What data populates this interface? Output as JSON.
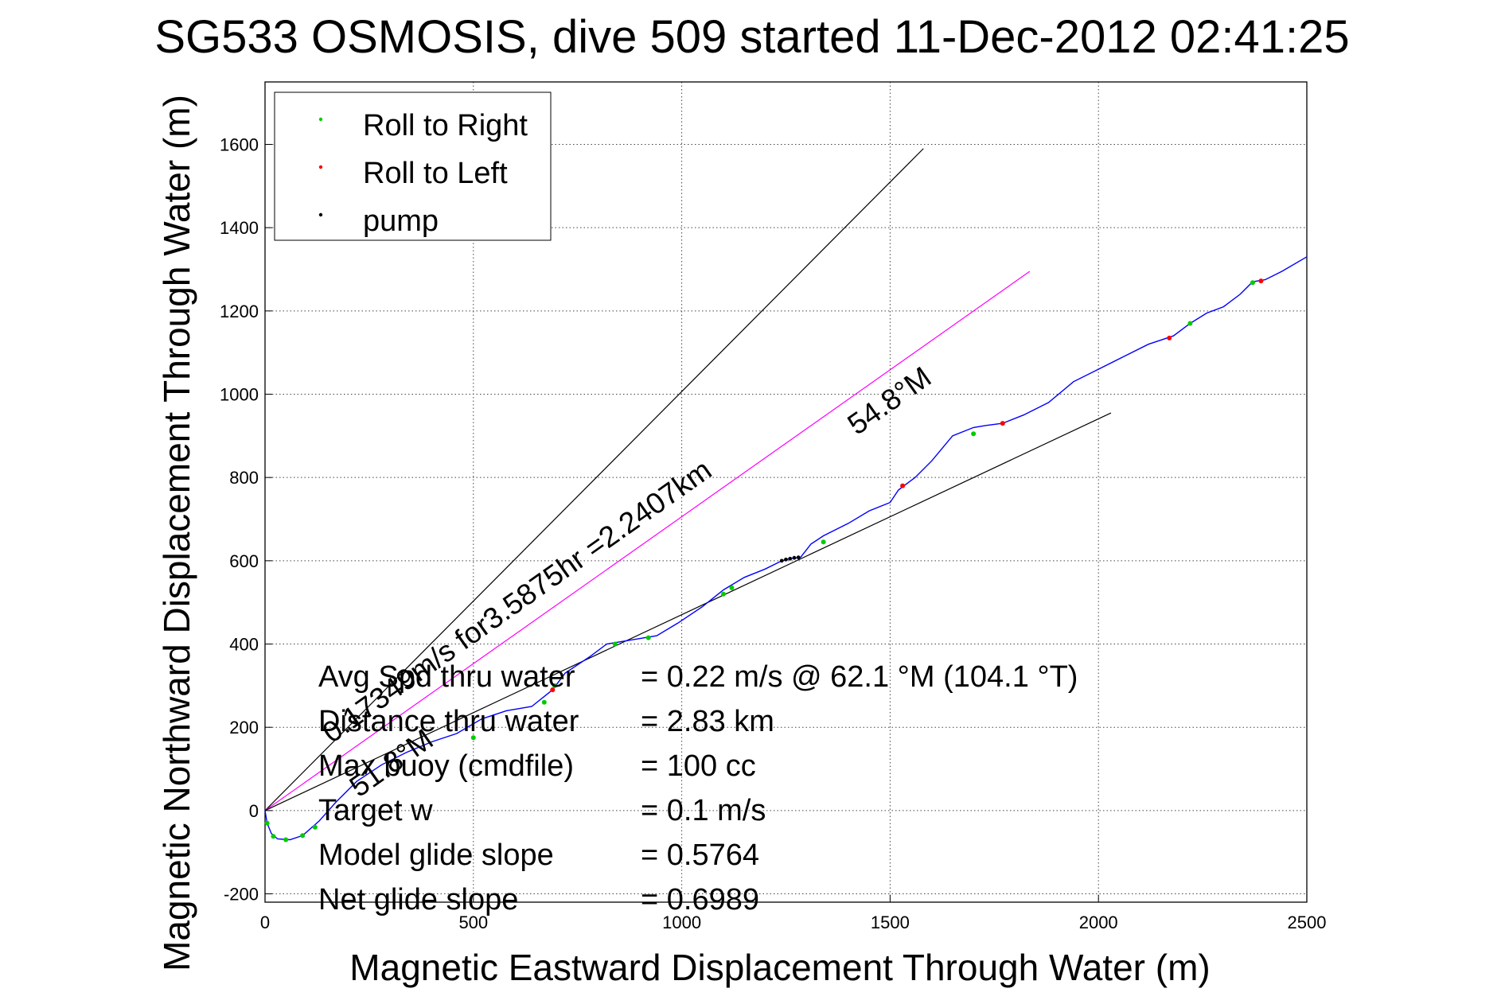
{
  "chart_data": {
    "type": "line",
    "title": "SG533 OSMOSIS, dive 509 started 11-Dec-2012 02:41:25",
    "xlabel": "Magnetic Eastward Displacement Through Water (m)",
    "ylabel": "Magnetic Northward Displacement Through Water (m)",
    "xlim": [
      0,
      2500
    ],
    "ylim": [
      -220,
      1750
    ],
    "xticks": [
      0,
      500,
      1000,
      1500,
      2000,
      2500
    ],
    "xtick_labels": [
      "0",
      "500",
      "1000",
      "1500",
      "2000",
      "2500"
    ],
    "yticks": [
      -200,
      0,
      200,
      400,
      600,
      800,
      1000,
      1200,
      1400,
      1600
    ],
    "ytick_labels": [
      "-200",
      "0",
      "200",
      "400",
      "600",
      "800",
      "1000",
      "1200",
      "1400",
      "1600"
    ],
    "grid": true,
    "legend_position": "top-left",
    "legend": [
      {
        "label": "Roll to Right",
        "color": "#00cc00"
      },
      {
        "label": "Roll to Left",
        "color": "#ff0000"
      },
      {
        "label": "pump",
        "color": "#000000"
      }
    ],
    "track": {
      "color": "#0000ff",
      "x": [
        0,
        5,
        15,
        30,
        60,
        90,
        130,
        170,
        220,
        280,
        340,
        400,
        460,
        520,
        580,
        640,
        690,
        720,
        780,
        820,
        880,
        940,
        990,
        1050,
        1100,
        1150,
        1200,
        1240,
        1260,
        1285,
        1310,
        1340,
        1400,
        1450,
        1500,
        1520,
        1560,
        1600,
        1650,
        1700,
        1730,
        1770,
        1820,
        1880,
        1940,
        2000,
        2060,
        2120,
        2180,
        2220,
        2260,
        2300,
        2340,
        2370,
        2400,
        2440,
        2500
      ],
      "y": [
        0,
        -30,
        -55,
        -68,
        -70,
        -60,
        -25,
        20,
        70,
        110,
        140,
        165,
        185,
        220,
        240,
        250,
        290,
        330,
        370,
        400,
        410,
        420,
        450,
        490,
        530,
        560,
        580,
        600,
        605,
        608,
        640,
        660,
        690,
        720,
        740,
        770,
        800,
        840,
        900,
        920,
        925,
        930,
        950,
        980,
        1030,
        1060,
        1090,
        1120,
        1140,
        1170,
        1195,
        1210,
        1240,
        1270,
        1275,
        1295,
        1330
      ]
    },
    "roll_right_x": [
      5,
      20,
      50,
      90,
      120,
      500,
      670,
      695,
      840,
      920,
      1100,
      1120,
      1340,
      1700,
      2220,
      2370
    ],
    "roll_right_y": [
      -30,
      -62,
      -70,
      -60,
      -40,
      175,
      260,
      300,
      400,
      415,
      520,
      535,
      645,
      905,
      1170,
      1268
    ],
    "roll_left_x": [
      690,
      1530,
      1770,
      2170,
      2390
    ],
    "roll_left_y": [
      290,
      780,
      930,
      1135,
      1272
    ],
    "pump_x": [
      1240,
      1250,
      1260,
      1270,
      1280
    ],
    "pump_y": [
      600,
      603,
      605,
      607,
      608
    ],
    "ref_lines": [
      {
        "color": "#000000",
        "x": [
          0,
          1580
        ],
        "y": [
          0,
          1590
        ]
      },
      {
        "color": "#ff00ff",
        "x": [
          0,
          1835
        ],
        "y": [
          0,
          1295
        ]
      },
      {
        "color": "#000000",
        "x": [
          0,
          2030
        ],
        "y": [
          0,
          955
        ]
      }
    ],
    "annotations": [
      {
        "text": "0.17349m/s for3.5875hr =2.2407km",
        "x": 160,
        "y": 160,
        "angle": -35.2
      },
      {
        "text": "54.8°M",
        "x": 1420,
        "y": 900,
        "angle": -35.2
      },
      {
        "text": "51.8°M",
        "x": 225,
        "y": 30,
        "angle": -35.2
      }
    ],
    "stats": [
      {
        "label": "Avg Spd thru water",
        "value": "=  0.22 m/s @  62.1 °M (104.1 °T)"
      },
      {
        "label": "Distance thru water",
        "value": "=  2.83 km"
      },
      {
        "label": "Max buoy (cmdfile)",
        "value": "= 100 cc"
      },
      {
        "label": "Target w",
        "value": "= 0.1 m/s"
      },
      {
        "label": "Model glide slope",
        "value": "= 0.5764"
      },
      {
        "label": "Net glide slope",
        "value": "= 0.6989"
      }
    ]
  }
}
